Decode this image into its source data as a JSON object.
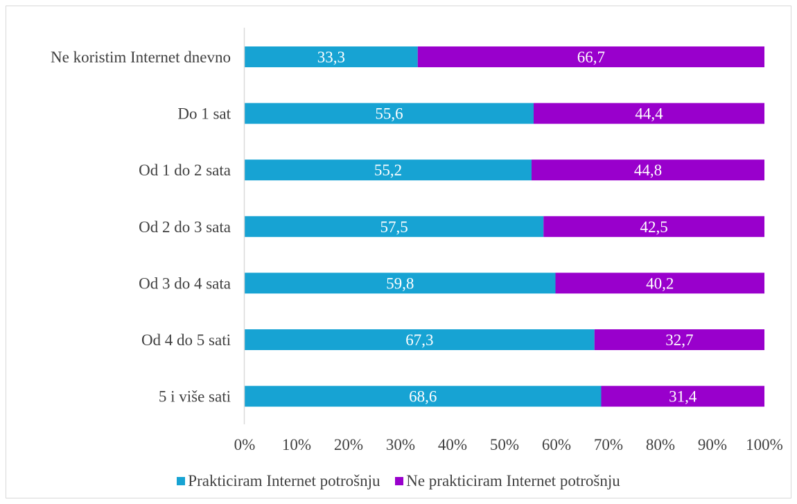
{
  "chart_data": {
    "type": "bar",
    "orientation": "horizontal",
    "stacked": "percent",
    "categories": [
      "Ne koristim Internet dnevno",
      "Do 1 sat",
      "Od 1 do 2 sata",
      "Od 2 do 3 sata",
      "Od 3 do 4 sata",
      "Od 4 do 5 sati",
      "5 i više sati"
    ],
    "series": [
      {
        "name": "Prakticiram Internet potrošnju",
        "color": "#17A3D3",
        "values": [
          33.3,
          55.6,
          55.2,
          57.5,
          59.8,
          67.3,
          68.6
        ],
        "labels": [
          "33,3",
          "55,6",
          "55,2",
          "57,5",
          "59,8",
          "67,3",
          "68,6"
        ]
      },
      {
        "name": "Ne prakticiram Internet potrošnju",
        "color": "#9900CC",
        "values": [
          66.7,
          44.4,
          44.8,
          42.5,
          40.2,
          32.7,
          31.4
        ],
        "labels": [
          "66,7",
          "44,4",
          "44,8",
          "42,5",
          "40,2",
          "32,7",
          "31,4"
        ]
      }
    ],
    "x_ticks": [
      "0%",
      "10%",
      "20%",
      "30%",
      "40%",
      "50%",
      "60%",
      "70%",
      "80%",
      "90%",
      "100%"
    ],
    "xlim": [
      0,
      100
    ],
    "grid": false,
    "legend_position": "bottom",
    "title": "",
    "xlabel": "",
    "ylabel": ""
  }
}
